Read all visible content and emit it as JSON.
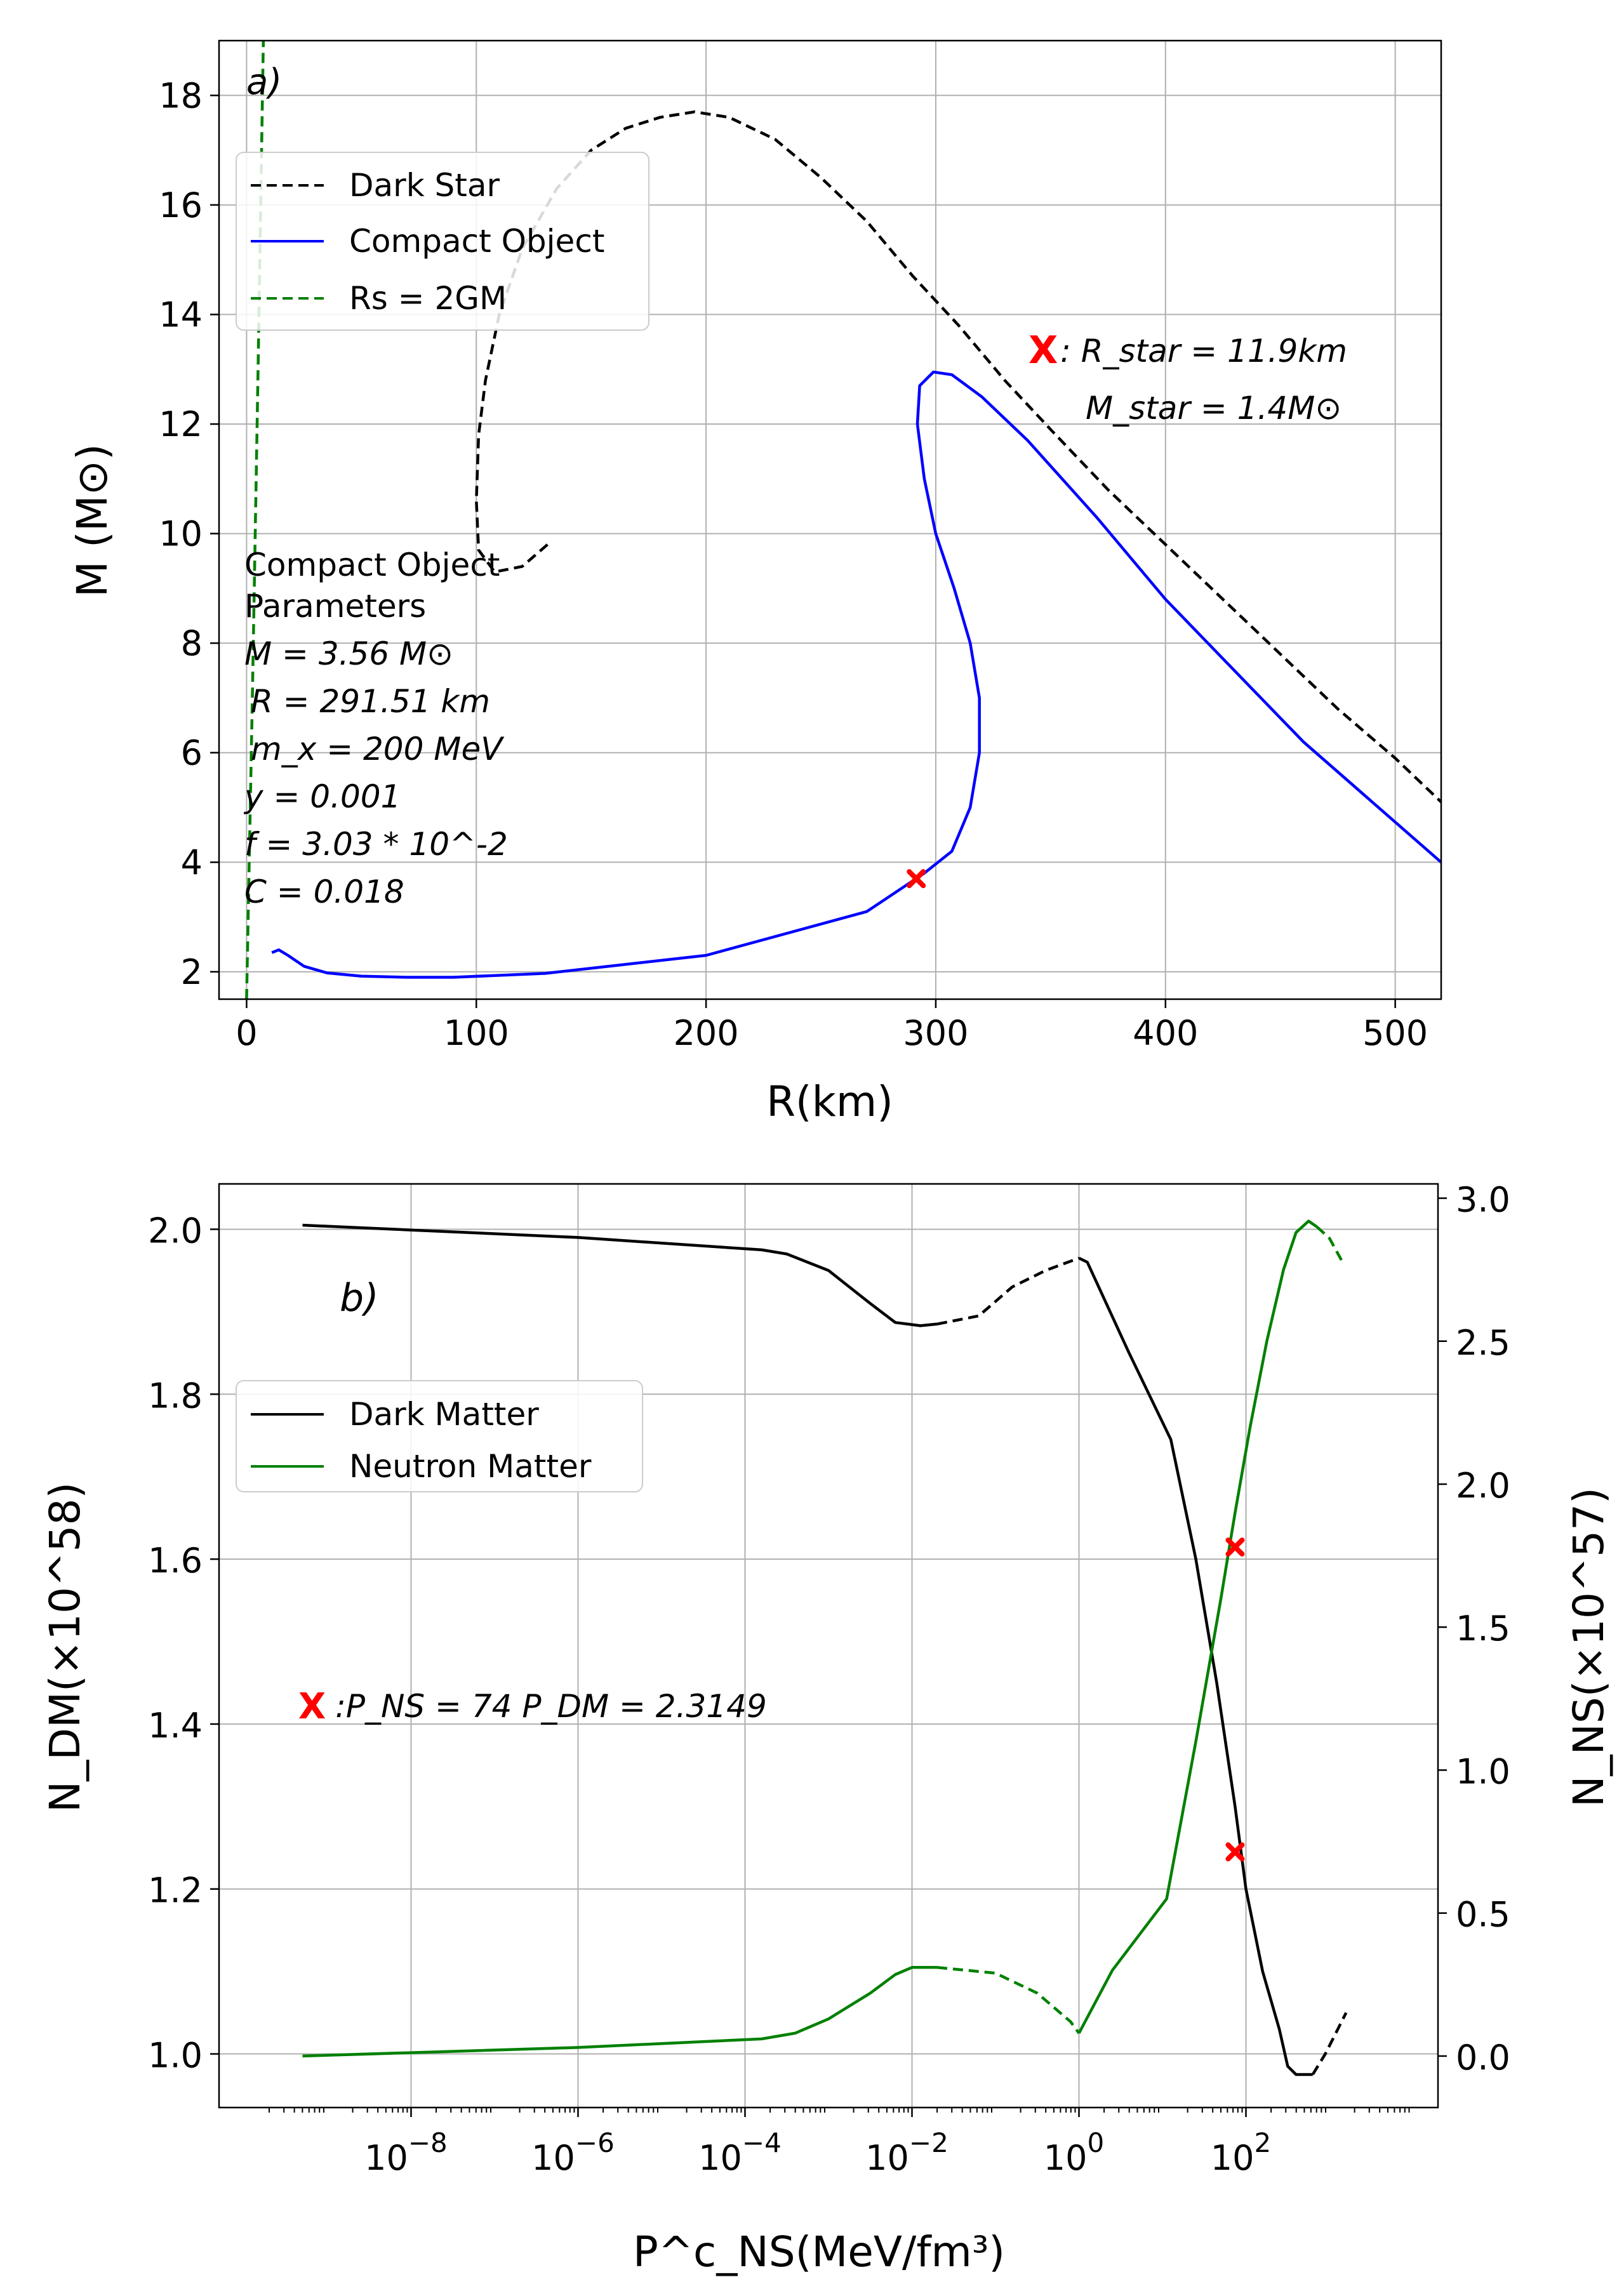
{
  "chart_data": [
    {
      "type": "line",
      "panel_label": "a)",
      "xlabel": "R(km)",
      "ylabel": "M (M⊙)",
      "xlim": [
        -12,
        520
      ],
      "ylim": [
        1.5,
        19
      ],
      "xticks": [
        0,
        100,
        200,
        300,
        400,
        500
      ],
      "xtick_labels": [
        "0",
        "100",
        "200",
        "300",
        "400",
        "500"
      ],
      "yticks": [
        2,
        4,
        6,
        8,
        10,
        12,
        14,
        16,
        18
      ],
      "ytick_labels": [
        "2",
        "4",
        "6",
        "8",
        "10",
        "12",
        "14",
        "16",
        "18"
      ],
      "grid": true,
      "legend_position": "upper-left",
      "series": [
        {
          "name": "Dark Star",
          "style": "dashed",
          "color": "#000000",
          "points": [
            [
              131,
              9.8
            ],
            [
              120,
              9.4
            ],
            [
              108,
              9.3
            ],
            [
              101,
              9.7
            ],
            [
              100,
              10.6
            ],
            [
              101,
              11.8
            ],
            [
              104,
              12.8
            ],
            [
              110,
              14.0
            ],
            [
              120,
              15.2
            ],
            [
              135,
              16.3
            ],
            [
              150,
              17.0
            ],
            [
              165,
              17.4
            ],
            [
              180,
              17.6
            ],
            [
              195,
              17.7
            ],
            [
              210,
              17.6
            ],
            [
              230,
              17.2
            ],
            [
              250,
              16.5
            ],
            [
              270,
              15.7
            ],
            [
              290,
              14.7
            ],
            [
              310,
              13.8
            ],
            [
              330,
              12.8
            ],
            [
              350,
              11.9
            ],
            [
              375,
              10.8
            ],
            [
              400,
              9.8
            ],
            [
              425,
              8.8
            ],
            [
              450,
              7.8
            ],
            [
              475,
              6.8
            ],
            [
              500,
              5.9
            ],
            [
              520,
              5.1
            ]
          ]
        },
        {
          "name": "Compact Object",
          "style": "solid",
          "color": "#0000ff",
          "points": [
            [
              11,
              2.35
            ],
            [
              14,
              2.4
            ],
            [
              18,
              2.3
            ],
            [
              25,
              2.1
            ],
            [
              35,
              1.98
            ],
            [
              50,
              1.92
            ],
            [
              70,
              1.9
            ],
            [
              90,
              1.9
            ],
            [
              130,
              1.97
            ],
            [
              200,
              2.3
            ],
            [
              270,
              3.1
            ],
            [
              295,
              3.8
            ],
            [
              307,
              4.2
            ],
            [
              315,
              5.0
            ],
            [
              319,
              6.0
            ],
            [
              319,
              7.0
            ],
            [
              315,
              8.0
            ],
            [
              308,
              9.0
            ],
            [
              300,
              10.0
            ],
            [
              295,
              11.0
            ],
            [
              292,
              12.0
            ],
            [
              293,
              12.7
            ],
            [
              299,
              12.95
            ],
            [
              307,
              12.9
            ],
            [
              320,
              12.5
            ],
            [
              340,
              11.7
            ],
            [
              370,
              10.3
            ],
            [
              400,
              8.8
            ],
            [
              430,
              7.5
            ],
            [
              460,
              6.2
            ],
            [
              490,
              5.1
            ],
            [
              520,
              4.0
            ]
          ]
        },
        {
          "name": "Rs = 2GM",
          "style": "dashed",
          "color": "#008000",
          "points": [
            [
              0,
              1.5
            ],
            [
              2.5,
              7
            ],
            [
              5,
              13
            ],
            [
              7.3,
              19
            ]
          ]
        }
      ],
      "markers": [
        {
          "x": 291.51,
          "y": 3.7,
          "color": "#ff0000",
          "symbol": "x"
        }
      ],
      "annotations": {
        "marker_glyph": "X",
        "star_radius": ": R_star = 11.9km",
        "star_mass": "M_star = 1.4M⊙",
        "params_title_1": "Compact Object",
        "params_title_2": "Parameters",
        "param_mass": "M = 3.56 M⊙",
        "param_radius": "R = 291.51 km",
        "param_mx": "m_x = 200 MeV",
        "param_y": "y = 0.001",
        "param_f": "f = 3.03 * 10^-2",
        "param_c": "C = 0.018"
      }
    },
    {
      "type": "line",
      "panel_label": "b)",
      "xlabel": "P^c_NS(MeV/fm³)",
      "ylabel_left": "N_DM(×10^58)",
      "ylabel_right": "N_NS(×10^57)",
      "x_scale": "log",
      "xlim_log10": [
        -10.3,
        4.3
      ],
      "ylim_left": [
        0.935,
        2.055
      ],
      "ylim_right": [
        -0.18,
        3.05
      ],
      "xtick_exponents": [
        -8,
        -6,
        -4,
        -2,
        0,
        2
      ],
      "xtick_base": "10",
      "xtick_powers": [
        "−8",
        "−6",
        "−4",
        "−2",
        "0",
        "2"
      ],
      "yticks_left": [
        1.0,
        1.2,
        1.4,
        1.6,
        1.8,
        2.0
      ],
      "ytick_labels_left": [
        "1.0",
        "1.2",
        "1.4",
        "1.6",
        "1.8",
        "2.0"
      ],
      "yticks_right": [
        0.0,
        0.5,
        1.0,
        1.5,
        2.0,
        2.5,
        3.0
      ],
      "ytick_labels_right": [
        "0.0",
        "0.5",
        "1.0",
        "1.5",
        "2.0",
        "2.5",
        "3.0"
      ],
      "grid": true,
      "legend_position": "upper-left",
      "series": [
        {
          "name": "Dark Matter",
          "axis": "left",
          "color": "#000000",
          "segments": [
            {
              "style": "solid",
              "points": [
                [
                  -9.3,
                  2.005
                ],
                [
                  -6,
                  1.99
                ],
                [
                  -3.8,
                  1.975
                ],
                [
                  -3.5,
                  1.97
                ],
                [
                  -3,
                  1.95
                ],
                [
                  -2.5,
                  1.91
                ],
                [
                  -2.2,
                  1.887
                ],
                [
                  -1.9,
                  1.883
                ],
                [
                  -1.7,
                  1.885
                ]
              ]
            },
            {
              "style": "dashed",
              "points": [
                [
                  -1.7,
                  1.885
                ],
                [
                  -1.2,
                  1.895
                ],
                [
                  -0.8,
                  1.93
                ],
                [
                  -0.4,
                  1.95
                ],
                [
                  0,
                  1.965
                ]
              ]
            },
            {
              "style": "solid",
              "points": [
                [
                  0,
                  1.965
                ],
                [
                  0.1,
                  1.96
                ],
                [
                  0.6,
                  1.85
                ],
                [
                  1.1,
                  1.745
                ],
                [
                  1.4,
                  1.6
                ],
                [
                  1.65,
                  1.45
                ],
                [
                  1.87,
                  1.3
                ],
                [
                  2.0,
                  1.2
                ],
                [
                  2.2,
                  1.1
                ],
                [
                  2.4,
                  1.03
                ],
                [
                  2.5,
                  0.985
                ],
                [
                  2.6,
                  0.975
                ],
                [
                  2.8,
                  0.975
                ]
              ]
            },
            {
              "style": "dashed",
              "points": [
                [
                  2.8,
                  0.975
                ],
                [
                  2.95,
                  1.0
                ],
                [
                  3.1,
                  1.03
                ],
                [
                  3.2,
                  1.05
                ]
              ]
            }
          ]
        },
        {
          "name": "Neutron Matter",
          "axis": "right",
          "color": "#008000",
          "segments": [
            {
              "style": "solid",
              "points": [
                [
                  -9.3,
                  0.0
                ],
                [
                  -6,
                  0.03
                ],
                [
                  -3.8,
                  0.06
                ],
                [
                  -3.4,
                  0.08
                ],
                [
                  -3,
                  0.13
                ],
                [
                  -2.5,
                  0.22
                ],
                [
                  -2.2,
                  0.285
                ],
                [
                  -2,
                  0.31
                ],
                [
                  -1.7,
                  0.31
                ]
              ]
            },
            {
              "style": "dashed",
              "points": [
                [
                  -1.7,
                  0.31
                ],
                [
                  -1.0,
                  0.29
                ],
                [
                  -0.5,
                  0.22
                ],
                [
                  -0.1,
                  0.12
                ],
                [
                  0,
                  0.08
                ]
              ]
            },
            {
              "style": "solid",
              "points": [
                [
                  0,
                  0.08
                ],
                [
                  0.4,
                  0.3
                ],
                [
                  1.05,
                  0.55
                ],
                [
                  1.4,
                  1.1
                ],
                [
                  1.7,
                  1.6
                ],
                [
                  1.87,
                  1.9
                ],
                [
                  2.05,
                  2.2
                ],
                [
                  2.25,
                  2.5
                ],
                [
                  2.45,
                  2.75
                ],
                [
                  2.6,
                  2.88
                ],
                [
                  2.75,
                  2.92
                ],
                [
                  2.85,
                  2.9
                ]
              ]
            },
            {
              "style": "dashed",
              "points": [
                [
                  2.85,
                  2.9
                ],
                [
                  3.0,
                  2.86
                ],
                [
                  3.15,
                  2.78
                ]
              ]
            }
          ]
        }
      ],
      "markers": [
        {
          "x_log10": 1.87,
          "y": 1.245,
          "axis": "left",
          "color": "#ff0000",
          "symbol": "x"
        },
        {
          "x_log10": 1.87,
          "y": 1.78,
          "axis": "right",
          "color": "#ff0000",
          "symbol": "x"
        }
      ],
      "annotations": {
        "marker_glyph": "X",
        "pressures": ":P_NS = 74 P_DM = 2.3149"
      }
    }
  ],
  "colors": {
    "dark_star": "#000000",
    "compact_object": "#0000ff",
    "schwarzschild": "#008000",
    "marker": "#ff0000",
    "neutron_axis": "#008000"
  }
}
